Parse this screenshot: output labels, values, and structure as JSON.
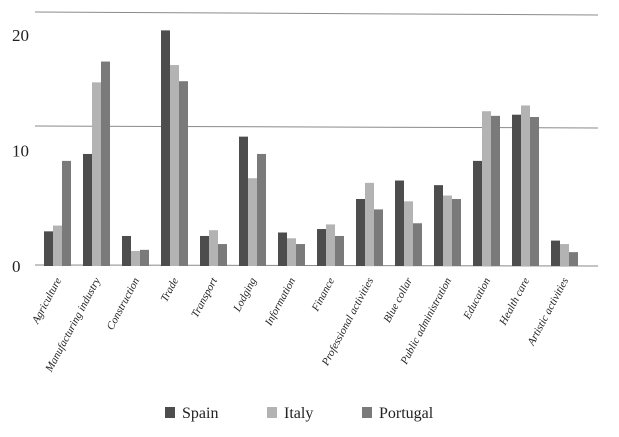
{
  "chart_data": {
    "type": "bar",
    "title": "",
    "xlabel": "",
    "ylabel": "",
    "ylim": [
      0,
      20
    ],
    "yticks": [
      0,
      10,
      20
    ],
    "grid": true,
    "legend_position": "bottom",
    "categories": [
      "Agriculture",
      "Manufacturing industry",
      "Construction",
      "Trade",
      "Transport",
      "Lodging",
      "Information",
      "Finance",
      "Professional activities",
      "Blue collar",
      "Public administration",
      "Education",
      "Health care",
      "Artistic activities"
    ],
    "series": [
      {
        "name": "Spain",
        "color": "#4d4d4d",
        "values": [
          3.0,
          9.7,
          2.6,
          20.4,
          2.6,
          11.2,
          2.9,
          3.2,
          5.8,
          7.4,
          7.0,
          9.1,
          13.1,
          2.2
        ]
      },
      {
        "name": "Italy",
        "color": "#b3b3b3",
        "values": [
          3.5,
          15.9,
          1.3,
          17.4,
          3.1,
          7.6,
          2.4,
          3.6,
          7.2,
          5.6,
          6.1,
          13.4,
          13.9,
          1.9
        ]
      },
      {
        "name": "Portugal",
        "color": "#7a7a7a",
        "values": [
          9.1,
          17.7,
          1.4,
          16.0,
          1.9,
          9.7,
          1.9,
          2.6,
          4.9,
          3.7,
          5.8,
          13.0,
          12.9,
          1.2
        ]
      }
    ]
  }
}
